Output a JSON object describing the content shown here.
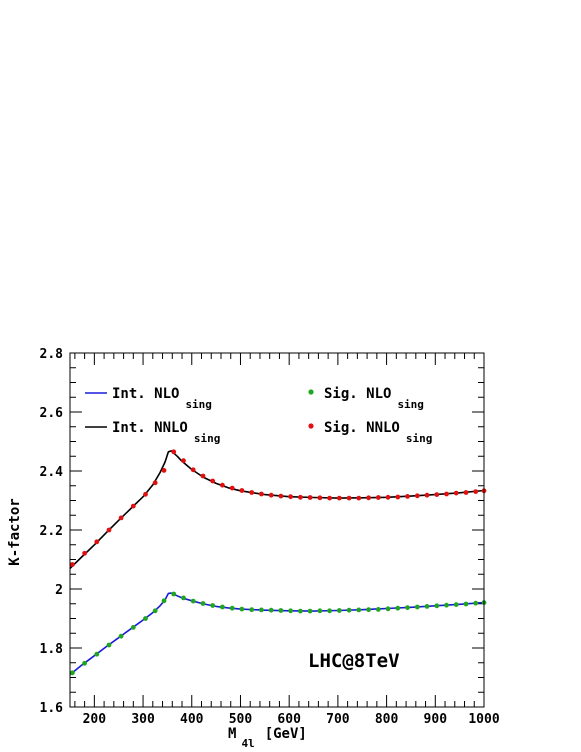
{
  "chart_data": {
    "type": "line",
    "xlabel": "M",
    "xlabel_sub": "4l",
    "xlabel_unit": "[GeV]",
    "ylabel": "K-factor",
    "xlim": [
      150,
      1000
    ],
    "ylim": [
      1.6,
      2.8
    ],
    "x_ticks": [
      200,
      300,
      400,
      500,
      600,
      700,
      800,
      900,
      1000
    ],
    "x_tick_labels": [
      "200",
      "300",
      "400",
      "500",
      "600",
      "700",
      "800",
      "900",
      "1000"
    ],
    "y_ticks": [
      1.6,
      1.8,
      2,
      2.2,
      2.4,
      2.6,
      2.8
    ],
    "y_tick_labels": [
      "1.6",
      "1.8",
      "2",
      "2.2",
      "2.4",
      "2.6",
      "2.8"
    ],
    "annotation": "LHC@8TeV",
    "legend": {
      "placement": "top",
      "entries": [
        {
          "label": "Int. NLO",
          "sub": "sing"
        },
        {
          "label": "Int. NNLO",
          "sub": "sing"
        },
        {
          "label": "Sig. NLO",
          "sub": "sing"
        },
        {
          "label": "Sig. NNLO",
          "sub": "sing"
        }
      ]
    },
    "colors": {
      "nlo_line": "#1a1adb",
      "nnlo_line": "#000000",
      "nlo_dots": "#1fa51f",
      "nnlo_dots": "#e01010"
    },
    "series": [
      {
        "name": "Int. NLO sing",
        "style": "line",
        "x": [
          150,
          175,
          200,
          225,
          250,
          275,
          300,
          320,
          335,
          345,
          352,
          358,
          362,
          370,
          380,
          400,
          425,
          450,
          475,
          500,
          550,
          600,
          650,
          700,
          750,
          800,
          850,
          900,
          950,
          1000
        ],
        "y": [
          1.71,
          1.743,
          1.774,
          1.805,
          1.835,
          1.865,
          1.895,
          1.92,
          1.943,
          1.963,
          1.985,
          1.986,
          1.983,
          1.977,
          1.97,
          1.96,
          1.949,
          1.941,
          1.936,
          1.932,
          1.928,
          1.926,
          1.925,
          1.927,
          1.93,
          1.934,
          1.938,
          1.943,
          1.948,
          1.954
        ]
      },
      {
        "name": "Int. NNLO sing",
        "style": "line",
        "x": [
          150,
          175,
          200,
          225,
          250,
          275,
          300,
          320,
          335,
          345,
          352,
          358,
          362,
          370,
          380,
          400,
          425,
          450,
          475,
          500,
          550,
          600,
          650,
          700,
          750,
          800,
          850,
          900,
          950,
          1000
        ],
        "y": [
          2.07,
          2.11,
          2.15,
          2.192,
          2.233,
          2.273,
          2.313,
          2.353,
          2.395,
          2.43,
          2.465,
          2.468,
          2.462,
          2.45,
          2.433,
          2.405,
          2.378,
          2.358,
          2.343,
          2.333,
          2.32,
          2.313,
          2.31,
          2.308,
          2.309,
          2.311,
          2.315,
          2.32,
          2.326,
          2.334
        ]
      },
      {
        "name": "Sig. NLO sing",
        "style": "dots",
        "x": [
          155,
          180,
          205,
          230,
          255,
          280,
          305,
          325,
          343,
          363,
          383,
          403,
          423,
          443,
          463,
          483,
          503,
          523,
          543,
          563,
          583,
          603,
          623,
          643,
          663,
          683,
          703,
          723,
          743,
          763,
          783,
          803,
          823,
          843,
          863,
          883,
          903,
          923,
          943,
          963,
          983,
          1000
        ],
        "y": [
          1.716,
          1.748,
          1.779,
          1.81,
          1.84,
          1.87,
          1.9,
          1.926,
          1.96,
          1.983,
          1.97,
          1.959,
          1.951,
          1.944,
          1.939,
          1.935,
          1.932,
          1.93,
          1.929,
          1.928,
          1.927,
          1.926,
          1.925,
          1.925,
          1.926,
          1.926,
          1.927,
          1.928,
          1.929,
          1.93,
          1.931,
          1.933,
          1.935,
          1.937,
          1.939,
          1.941,
          1.943,
          1.945,
          1.947,
          1.949,
          1.952,
          1.954
        ]
      },
      {
        "name": "Sig. NNLO sing",
        "style": "dots",
        "x": [
          155,
          180,
          205,
          230,
          255,
          280,
          305,
          325,
          343,
          363,
          383,
          403,
          423,
          443,
          463,
          483,
          503,
          523,
          543,
          563,
          583,
          603,
          623,
          643,
          663,
          683,
          703,
          723,
          743,
          763,
          783,
          803,
          823,
          843,
          863,
          883,
          903,
          923,
          943,
          963,
          983,
          1000
        ],
        "y": [
          2.083,
          2.121,
          2.16,
          2.2,
          2.241,
          2.281,
          2.321,
          2.36,
          2.402,
          2.465,
          2.435,
          2.404,
          2.383,
          2.366,
          2.352,
          2.342,
          2.334,
          2.327,
          2.322,
          2.318,
          2.315,
          2.313,
          2.311,
          2.31,
          2.309,
          2.308,
          2.308,
          2.308,
          2.308,
          2.309,
          2.31,
          2.311,
          2.312,
          2.314,
          2.316,
          2.318,
          2.32,
          2.322,
          2.325,
          2.327,
          2.33,
          2.333
        ]
      }
    ]
  }
}
